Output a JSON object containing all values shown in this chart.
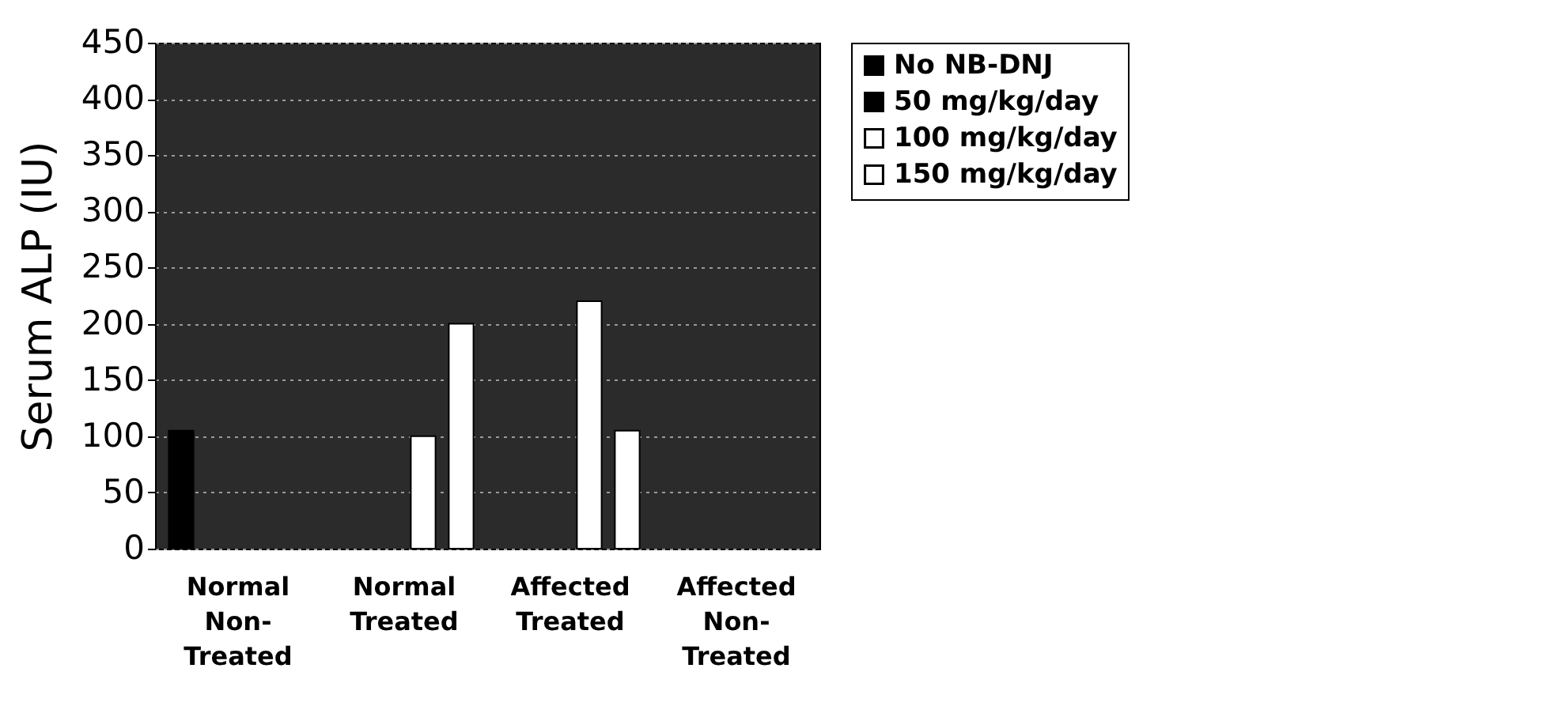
{
  "chart_data": {
    "type": "bar",
    "ylabel": "Serum ALP (IU)",
    "categories": [
      "Normal Non-Treated",
      "Normal Treated",
      "Affected Treated",
      "Affected Non-Treated"
    ],
    "series": [
      {
        "name": "No NB-DNJ",
        "color": "#000000",
        "values": [
          105,
          null,
          null,
          null
        ]
      },
      {
        "name": "50 mg/kg/day",
        "color": "#000000",
        "values": [
          null,
          null,
          null,
          null
        ]
      },
      {
        "name": "100 mg/kg/day",
        "color": "#ffffff",
        "values": [
          null,
          100,
          220,
          null
        ]
      },
      {
        "name": "150 mg/kg/day",
        "color": "#ffffff",
        "values": [
          null,
          200,
          105,
          null
        ]
      }
    ],
    "ylim": [
      0,
      450
    ],
    "yticks": [
      0,
      50,
      100,
      150,
      200,
      250,
      300,
      350,
      400,
      450
    ],
    "grid": "y",
    "legend": "right"
  }
}
